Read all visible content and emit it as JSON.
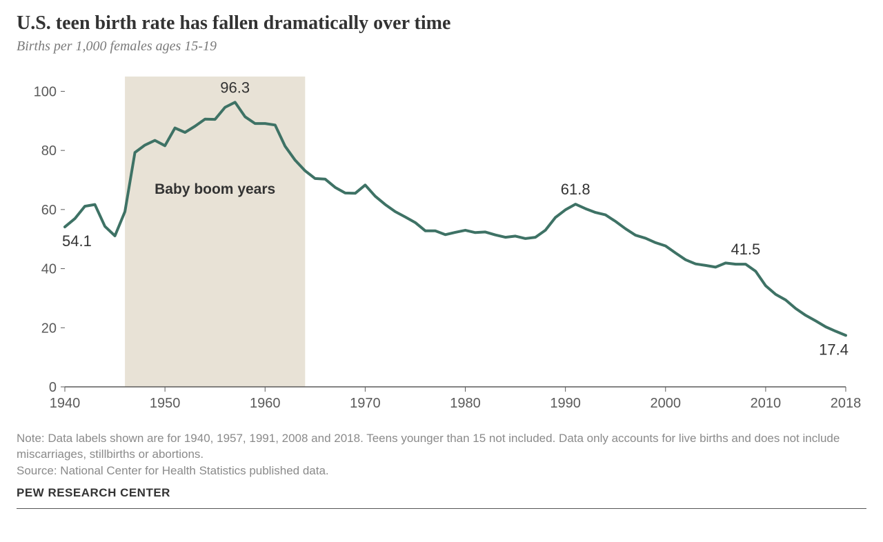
{
  "title": "U.S. teen birth rate has fallen dramatically over time",
  "subtitle": "Births per 1,000 females ages 15-19",
  "chart": {
    "type": "line",
    "background_color": "#ffffff",
    "shaded_region": {
      "x_start": 1946,
      "x_end": 1964,
      "fill": "#e8e2d6",
      "label": "Baby boom years"
    },
    "line_color": "#3e7265",
    "line_width": 4,
    "x": {
      "min": 1940,
      "max": 2018,
      "ticks": [
        1940,
        1950,
        1960,
        1970,
        1980,
        1990,
        2000,
        2010,
        2018
      ],
      "tick_labels": [
        "1940",
        "1950",
        "1960",
        "1970",
        "1980",
        "1990",
        "2000",
        "2010",
        "2018"
      ],
      "axis_color": "#5a5a5a"
    },
    "y": {
      "min": 0,
      "max": 105,
      "ticks": [
        0,
        20,
        40,
        60,
        80,
        100
      ],
      "tick_labels": [
        "0",
        "20",
        "40",
        "60",
        "80",
        "100"
      ],
      "axis_color": "#5a5a5a"
    },
    "series": [
      {
        "year": 1940,
        "value": 54.1
      },
      {
        "year": 1941,
        "value": 56.9
      },
      {
        "year": 1942,
        "value": 61.1
      },
      {
        "year": 1943,
        "value": 61.7
      },
      {
        "year": 1944,
        "value": 54.3
      },
      {
        "year": 1945,
        "value": 51.1
      },
      {
        "year": 1946,
        "value": 59.3
      },
      {
        "year": 1947,
        "value": 79.3
      },
      {
        "year": 1948,
        "value": 81.8
      },
      {
        "year": 1949,
        "value": 83.4
      },
      {
        "year": 1950,
        "value": 81.6
      },
      {
        "year": 1951,
        "value": 87.6
      },
      {
        "year": 1952,
        "value": 86.1
      },
      {
        "year": 1953,
        "value": 88.2
      },
      {
        "year": 1954,
        "value": 90.6
      },
      {
        "year": 1955,
        "value": 90.5
      },
      {
        "year": 1956,
        "value": 94.6
      },
      {
        "year": 1957,
        "value": 96.3
      },
      {
        "year": 1958,
        "value": 91.4
      },
      {
        "year": 1959,
        "value": 89.1
      },
      {
        "year": 1960,
        "value": 89.1
      },
      {
        "year": 1961,
        "value": 88.6
      },
      {
        "year": 1962,
        "value": 81.4
      },
      {
        "year": 1963,
        "value": 76.7
      },
      {
        "year": 1964,
        "value": 73.1
      },
      {
        "year": 1965,
        "value": 70.5
      },
      {
        "year": 1966,
        "value": 70.3
      },
      {
        "year": 1967,
        "value": 67.5
      },
      {
        "year": 1968,
        "value": 65.6
      },
      {
        "year": 1969,
        "value": 65.5
      },
      {
        "year": 1970,
        "value": 68.3
      },
      {
        "year": 1971,
        "value": 64.5
      },
      {
        "year": 1972,
        "value": 61.7
      },
      {
        "year": 1973,
        "value": 59.3
      },
      {
        "year": 1974,
        "value": 57.5
      },
      {
        "year": 1975,
        "value": 55.6
      },
      {
        "year": 1976,
        "value": 52.8
      },
      {
        "year": 1977,
        "value": 52.8
      },
      {
        "year": 1978,
        "value": 51.5
      },
      {
        "year": 1979,
        "value": 52.3
      },
      {
        "year": 1980,
        "value": 53.0
      },
      {
        "year": 1981,
        "value": 52.2
      },
      {
        "year": 1982,
        "value": 52.4
      },
      {
        "year": 1983,
        "value": 51.4
      },
      {
        "year": 1984,
        "value": 50.6
      },
      {
        "year": 1985,
        "value": 51.0
      },
      {
        "year": 1986,
        "value": 50.2
      },
      {
        "year": 1987,
        "value": 50.6
      },
      {
        "year": 1988,
        "value": 53.0
      },
      {
        "year": 1989,
        "value": 57.3
      },
      {
        "year": 1990,
        "value": 59.9
      },
      {
        "year": 1991,
        "value": 61.8
      },
      {
        "year": 1992,
        "value": 60.3
      },
      {
        "year": 1993,
        "value": 59.0
      },
      {
        "year": 1994,
        "value": 58.2
      },
      {
        "year": 1995,
        "value": 56.0
      },
      {
        "year": 1996,
        "value": 53.5
      },
      {
        "year": 1997,
        "value": 51.3
      },
      {
        "year": 1998,
        "value": 50.3
      },
      {
        "year": 1999,
        "value": 48.8
      },
      {
        "year": 2000,
        "value": 47.7
      },
      {
        "year": 2001,
        "value": 45.3
      },
      {
        "year": 2002,
        "value": 43.0
      },
      {
        "year": 2003,
        "value": 41.6
      },
      {
        "year": 2004,
        "value": 41.1
      },
      {
        "year": 2005,
        "value": 40.5
      },
      {
        "year": 2006,
        "value": 41.9
      },
      {
        "year": 2007,
        "value": 41.5
      },
      {
        "year": 2008,
        "value": 41.5
      },
      {
        "year": 2009,
        "value": 39.1
      },
      {
        "year": 2010,
        "value": 34.2
      },
      {
        "year": 2011,
        "value": 31.3
      },
      {
        "year": 2012,
        "value": 29.4
      },
      {
        "year": 2013,
        "value": 26.5
      },
      {
        "year": 2014,
        "value": 24.2
      },
      {
        "year": 2015,
        "value": 22.3
      },
      {
        "year": 2016,
        "value": 20.3
      },
      {
        "year": 2017,
        "value": 18.8
      },
      {
        "year": 2018,
        "value": 17.4
      }
    ],
    "callouts": [
      {
        "year": 1940,
        "value": 54.1,
        "label": "54.1",
        "pos": "below"
      },
      {
        "year": 1957,
        "value": 96.3,
        "label": "96.3",
        "pos": "above"
      },
      {
        "year": 1991,
        "value": 61.8,
        "label": "61.8",
        "pos": "above"
      },
      {
        "year": 2008,
        "value": 41.5,
        "label": "41.5",
        "pos": "above"
      },
      {
        "year": 2018,
        "value": 17.4,
        "label": "17.4",
        "pos": "below"
      }
    ]
  },
  "note": "Note: Data labels shown are for 1940, 1957, 1991, 2008 and 2018. Teens younger than 15 not included. Data only accounts for live births and does not include miscarriages, stillbirths or abortions.",
  "source_text": "Source: National Center for Health Statistics published data.",
  "logo": "PEW RESEARCH CENTER"
}
